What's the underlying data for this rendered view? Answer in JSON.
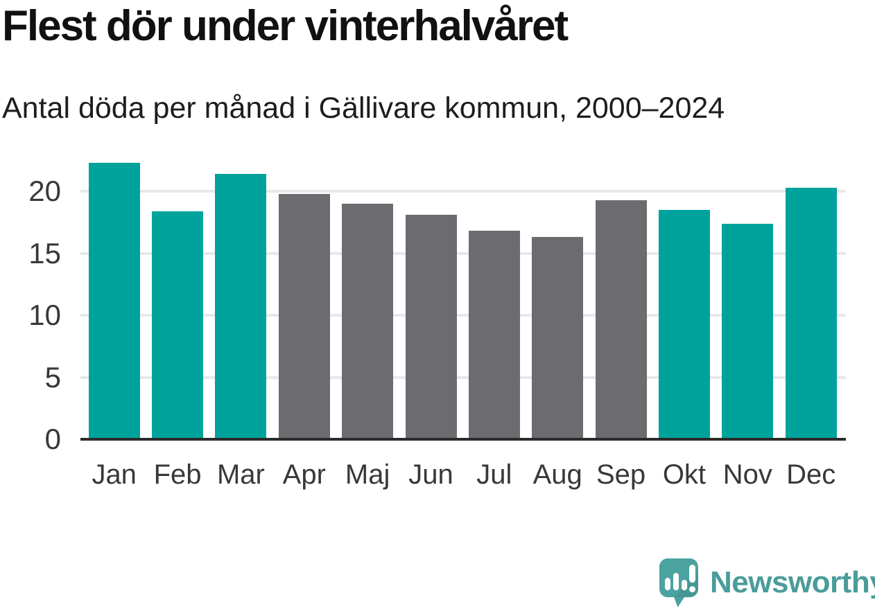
{
  "header": {
    "title": "Flest dör under vinterhalvåret",
    "subtitle": "Antal döda per månad i Gällivare kommun, 2000–2024"
  },
  "chart_data": {
    "type": "bar",
    "title": "Flest dör under vinterhalvåret",
    "subtitle": "Antal döda per månad i Gällivare kommun, 2000–2024",
    "categories": [
      "Jan",
      "Feb",
      "Mar",
      "Apr",
      "Maj",
      "Jun",
      "Jul",
      "Aug",
      "Sep",
      "Okt",
      "Nov",
      "Dec"
    ],
    "values": [
      22.3,
      18.4,
      21.4,
      19.8,
      19.0,
      18.1,
      16.8,
      16.3,
      19.3,
      18.5,
      17.4,
      20.3
    ],
    "series_color_keys": [
      "winter",
      "winter",
      "winter",
      "summer",
      "summer",
      "summer",
      "summer",
      "summer",
      "summer",
      "winter",
      "winter",
      "winter"
    ],
    "xlabel": "",
    "ylabel": "",
    "yticks": [
      0,
      5,
      10,
      15,
      20
    ],
    "ylim": [
      0,
      22.5
    ],
    "grid": "horizontal-only",
    "legend": "none",
    "colors": {
      "winter": "#00a39b",
      "summer": "#6c6c70",
      "gridline": "#e8e8e8",
      "axis": "#2b2b2b",
      "tick_text": "#383838"
    }
  },
  "footer": {
    "brand": "Newsworthy",
    "logo_icon": "newsworthy-speech-bubble-barchart-icon",
    "brand_color": "#4a9c9a",
    "logo_bubble_color": "#4ba3a0"
  }
}
